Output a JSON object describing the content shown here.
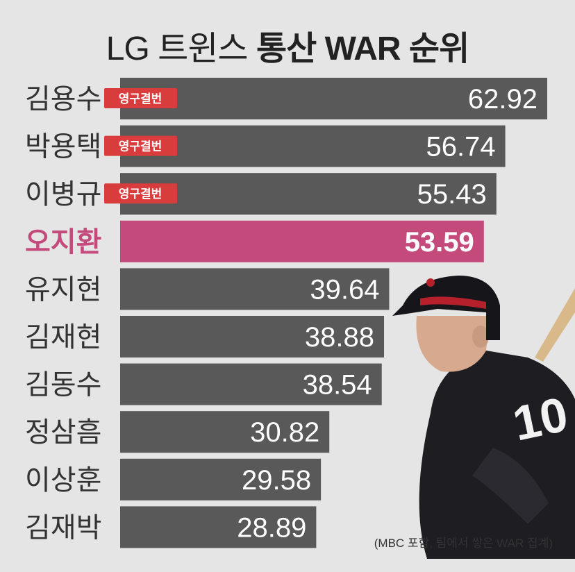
{
  "title": {
    "light": "LG 트윈스 ",
    "bold": "통산 WAR 순위"
  },
  "note": "(MBC 포함, 팀에서 쌓은 WAR 집계)",
  "badge_label": "영구결번",
  "colors": {
    "bar": "#595959",
    "highlight": "#c44a7c",
    "badge": "#d93c3c",
    "background": "#e5e5e5"
  },
  "chart_data": {
    "type": "bar",
    "orientation": "horizontal",
    "categories": [
      "김용수",
      "박용택",
      "이병규",
      "오지환",
      "유지현",
      "김재현",
      "김동수",
      "정삼흠",
      "이상훈",
      "김재박"
    ],
    "values": [
      62.92,
      56.74,
      55.43,
      53.59,
      39.64,
      38.88,
      38.54,
      30.82,
      29.58,
      28.89
    ],
    "value_labels": [
      "62.92",
      "56.74",
      "55.43",
      "53.59",
      "39.64",
      "38.88",
      "38.54",
      "30.82",
      "29.58",
      "28.89"
    ],
    "badges": [
      true,
      true,
      true,
      false,
      false,
      false,
      false,
      false,
      false,
      false
    ],
    "highlight_index": 3,
    "title": "LG 트윈스 통산 WAR 순위"
  }
}
